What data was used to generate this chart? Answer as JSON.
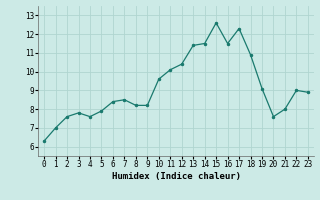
{
  "x": [
    0,
    1,
    2,
    3,
    4,
    5,
    6,
    7,
    8,
    9,
    10,
    11,
    12,
    13,
    14,
    15,
    16,
    17,
    18,
    19,
    20,
    21,
    22,
    23
  ],
  "y": [
    6.3,
    7.0,
    7.6,
    7.8,
    7.6,
    7.9,
    8.4,
    8.5,
    8.2,
    8.2,
    9.6,
    10.1,
    10.4,
    11.4,
    11.5,
    12.6,
    11.5,
    12.3,
    10.9,
    9.1,
    7.6,
    8.0,
    9.0,
    8.9
  ],
  "line_color": "#1a7a6e",
  "marker_color": "#1a7a6e",
  "bg_color": "#cceae6",
  "grid_color": "#b0d5d0",
  "xlabel": "Humidex (Indice chaleur)",
  "ylim": [
    5.5,
    13.5
  ],
  "xlim": [
    -0.5,
    23.5
  ],
  "yticks": [
    6,
    7,
    8,
    9,
    10,
    11,
    12,
    13
  ],
  "xticks": [
    0,
    1,
    2,
    3,
    4,
    5,
    6,
    7,
    8,
    9,
    10,
    11,
    12,
    13,
    14,
    15,
    16,
    17,
    18,
    19,
    20,
    21,
    22,
    23
  ],
  "label_fontsize": 6.5,
  "tick_fontsize": 5.5
}
